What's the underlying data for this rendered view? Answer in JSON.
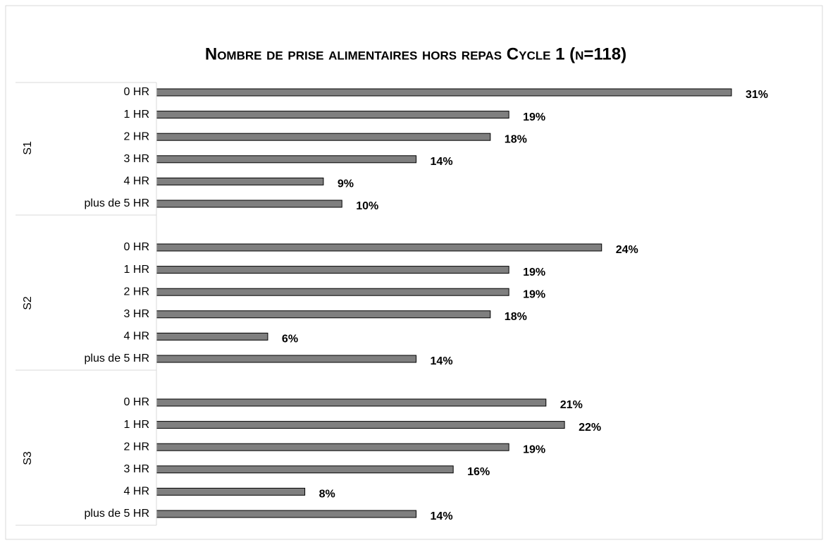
{
  "chart_data": {
    "type": "bar",
    "orientation": "horizontal",
    "title": "Nombre de prise alimentaires hors repas Cycle 1 (n=118)",
    "categories": [
      "0 HR",
      "1 HR",
      "2 HR",
      "3 HR",
      "4 HR",
      "plus de 5 HR"
    ],
    "color": "#7f7f7f",
    "groups": [
      {
        "name": "S1",
        "values": [
          31,
          19,
          18,
          14,
          9,
          10
        ],
        "value_labels": [
          "31%",
          "19%",
          "18%",
          "14%",
          "9%",
          "10%"
        ]
      },
      {
        "name": "S2",
        "values": [
          24,
          19,
          19,
          18,
          6,
          14
        ],
        "value_labels": [
          "24%",
          "19%",
          "19%",
          "18%",
          "6%",
          "14%"
        ]
      },
      {
        "name": "S3",
        "values": [
          21,
          22,
          19,
          16,
          8,
          14
        ],
        "value_labels": [
          "21%",
          "22%",
          "19%",
          "16%",
          "8%",
          "14%"
        ]
      }
    ]
  }
}
